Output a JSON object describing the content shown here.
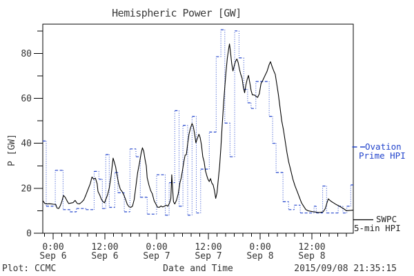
{
  "title": "Hemispheric Power [GW]",
  "axes": {
    "y_label": "P [GW]",
    "x_label": "Date and Time",
    "y_major_ticks": [
      0,
      20,
      40,
      60,
      80
    ],
    "x_ticks": [
      {
        "h": 2.4,
        "time": "0:00",
        "date": "Sep 6"
      },
      {
        "h": 14.4,
        "time": "12:00",
        "date": "Sep 6"
      },
      {
        "h": 26.4,
        "time": "0:00",
        "date": "Sep 7"
      },
      {
        "h": 38.4,
        "time": "12:00",
        "date": "Sep 7"
      },
      {
        "h": 50.4,
        "time": "0:00",
        "date": "Sep 8"
      },
      {
        "h": 62.4,
        "time": "12:00",
        "date": "Sep 8"
      }
    ]
  },
  "footer": {
    "left": "Plot: CCMC",
    "right": "2015/09/08 21:35:15"
  },
  "legend": {
    "ovation": {
      "line1": "Ovation",
      "line2": "Prime HPI",
      "color": "#2244cc"
    },
    "swpc": {
      "line1": "SWPC",
      "line2": "5-min HPI",
      "color": "#000000"
    }
  },
  "chart_data": {
    "type": "line",
    "title": "Hemispheric Power [GW]",
    "xlabel": "Date and Time",
    "ylabel": "P [GW]",
    "x_unit": "hours from plot start (left edge = 21:35 UT 2015-09-05, right edge = 21:35 UT 2015-09-08)",
    "xlim": [
      0,
      72
    ],
    "ylim": [
      0,
      93
    ],
    "grid": false,
    "legend_position": "right-outside",
    "x_minor_tick_hours": 2,
    "y_minor_tick_step": 10,
    "series": [
      {
        "name": "SWPC 5-min HPI",
        "style": "solid",
        "color": "#000000",
        "points": [
          [
            0,
            14.5
          ],
          [
            0.5,
            13.2
          ],
          [
            1,
            13
          ],
          [
            1.5,
            13.1
          ],
          [
            2,
            13
          ],
          [
            2.5,
            12.9
          ],
          [
            3,
            12.8
          ],
          [
            3.3,
            11.2
          ],
          [
            3.7,
            11
          ],
          [
            4,
            12
          ],
          [
            4.4,
            14
          ],
          [
            4.8,
            16.8
          ],
          [
            5.2,
            16
          ],
          [
            5.6,
            14.5
          ],
          [
            6,
            13.2
          ],
          [
            6.5,
            13.4
          ],
          [
            7,
            13.6
          ],
          [
            7.5,
            14.6
          ],
          [
            8,
            13.2
          ],
          [
            8.5,
            13
          ],
          [
            9,
            13.8
          ],
          [
            9.5,
            14.8
          ],
          [
            10,
            17
          ],
          [
            10.5,
            19.5
          ],
          [
            11,
            22
          ],
          [
            11.4,
            25
          ],
          [
            11.8,
            24
          ],
          [
            12.2,
            24.5
          ],
          [
            12.6,
            22
          ],
          [
            12.8,
            18.6
          ],
          [
            13.2,
            17
          ],
          [
            13.6,
            15
          ],
          [
            14,
            14
          ],
          [
            14.3,
            13.5
          ],
          [
            14.7,
            15.5
          ],
          [
            15,
            17
          ],
          [
            15.4,
            20
          ],
          [
            15.8,
            25
          ],
          [
            16.1,
            30
          ],
          [
            16.3,
            33.4
          ],
          [
            16.6,
            31.5
          ],
          [
            16.9,
            29.5
          ],
          [
            17.2,
            26
          ],
          [
            17.6,
            22
          ],
          [
            18,
            19.5
          ],
          [
            18.4,
            18.5
          ],
          [
            18.8,
            17
          ],
          [
            19.2,
            15
          ],
          [
            19.6,
            12.8
          ],
          [
            20,
            11.8
          ],
          [
            20.4,
            11.5
          ],
          [
            20.8,
            12
          ],
          [
            21.2,
            15
          ],
          [
            21.6,
            21
          ],
          [
            22,
            27
          ],
          [
            22.4,
            31
          ],
          [
            22.8,
            35.5
          ],
          [
            23.1,
            38
          ],
          [
            23.4,
            36.5
          ],
          [
            23.7,
            33
          ],
          [
            24,
            30
          ],
          [
            24.2,
            24.7
          ],
          [
            24.6,
            21.5
          ],
          [
            25,
            19
          ],
          [
            25.4,
            17.5
          ],
          [
            25.8,
            14.5
          ],
          [
            26.2,
            13
          ],
          [
            26.6,
            11.6
          ],
          [
            27,
            11.5
          ],
          [
            27.4,
            12.1
          ],
          [
            27.8,
            11.7
          ],
          [
            28.2,
            12
          ],
          [
            28.6,
            12.5
          ],
          [
            29,
            12
          ],
          [
            29.4,
            13.5
          ],
          [
            29.7,
            15.5
          ],
          [
            29.9,
            26
          ],
          [
            30.1,
            20
          ],
          [
            30.3,
            14
          ],
          [
            30.6,
            13
          ],
          [
            31,
            14.7
          ],
          [
            31.4,
            17.5
          ],
          [
            31.8,
            22.5
          ],
          [
            32.1,
            24.6
          ],
          [
            32.4,
            28
          ],
          [
            32.7,
            31.7
          ],
          [
            33,
            34.7
          ],
          [
            33.3,
            35
          ],
          [
            33.6,
            39.8
          ],
          [
            33.9,
            44
          ],
          [
            34.2,
            46.5
          ],
          [
            34.6,
            48.8
          ],
          [
            34.9,
            47.5
          ],
          [
            35.2,
            44.3
          ],
          [
            35.5,
            40.2
          ],
          [
            35.8,
            42
          ],
          [
            36.2,
            44
          ],
          [
            36.5,
            42.5
          ],
          [
            36.8,
            39.2
          ],
          [
            37.1,
            34
          ],
          [
            37.4,
            31.9
          ],
          [
            37.7,
            28
          ],
          [
            38,
            25.8
          ],
          [
            38.3,
            24
          ],
          [
            38.6,
            23
          ],
          [
            38.9,
            24.3
          ],
          [
            39.2,
            22.3
          ],
          [
            39.5,
            21.5
          ],
          [
            39.8,
            19
          ],
          [
            40.1,
            15.5
          ],
          [
            40.4,
            18
          ],
          [
            40.7,
            24
          ],
          [
            41,
            30
          ],
          [
            41.3,
            38
          ],
          [
            41.6,
            48
          ],
          [
            41.9,
            57
          ],
          [
            42.2,
            65
          ],
          [
            42.5,
            72
          ],
          [
            42.8,
            78
          ],
          [
            43.1,
            82
          ],
          [
            43.3,
            84.2
          ],
          [
            43.5,
            81
          ],
          [
            43.8,
            75.5
          ],
          [
            44.1,
            72.2
          ],
          [
            44.4,
            74.5
          ],
          [
            44.7,
            76.5
          ],
          [
            45,
            77.5
          ],
          [
            45.3,
            76
          ],
          [
            45.6,
            73
          ],
          [
            45.9,
            70.7
          ],
          [
            46.2,
            69
          ],
          [
            46.5,
            65
          ],
          [
            46.8,
            62.5
          ],
          [
            47.1,
            66
          ],
          [
            47.4,
            68.5
          ],
          [
            47.7,
            70.2
          ],
          [
            48,
            67
          ],
          [
            48.3,
            63.5
          ],
          [
            48.6,
            61.5
          ],
          [
            49,
            61.5
          ],
          [
            49.4,
            61
          ],
          [
            49.8,
            60.4
          ],
          [
            50.2,
            62
          ],
          [
            50.6,
            66.6
          ],
          [
            51,
            68
          ],
          [
            51.5,
            70
          ],
          [
            52,
            72
          ],
          [
            52.5,
            75
          ],
          [
            52.8,
            76.3
          ],
          [
            53.2,
            74
          ],
          [
            53.6,
            72
          ],
          [
            53.9,
            70.7
          ],
          [
            54.2,
            67
          ],
          [
            54.6,
            62
          ],
          [
            55,
            56
          ],
          [
            55.4,
            50
          ],
          [
            55.8,
            46
          ],
          [
            56.2,
            41
          ],
          [
            56.6,
            36
          ],
          [
            57,
            31.8
          ],
          [
            57.5,
            28
          ],
          [
            58,
            24
          ],
          [
            58.5,
            21
          ],
          [
            59,
            18.5
          ],
          [
            59.5,
            16
          ],
          [
            60,
            13.5
          ],
          [
            60.5,
            12
          ],
          [
            61,
            10.5
          ],
          [
            61.5,
            10
          ],
          [
            62,
            9.8
          ],
          [
            62.5,
            9.6
          ],
          [
            63,
            9.5
          ],
          [
            63.5,
            9.3
          ],
          [
            64,
            9.2
          ],
          [
            64.5,
            9.3
          ],
          [
            65,
            9.5
          ],
          [
            65.5,
            11
          ],
          [
            65.9,
            13.5
          ],
          [
            66.2,
            15.3
          ],
          [
            66.6,
            14.6
          ],
          [
            67,
            14
          ],
          [
            67.5,
            13.4
          ],
          [
            68,
            12.8
          ],
          [
            68.5,
            12.3
          ],
          [
            69,
            11.8
          ],
          [
            69.5,
            11.2
          ],
          [
            70,
            10.6
          ],
          [
            70.4,
            10
          ],
          [
            71,
            10.1
          ],
          [
            71.5,
            10.2
          ],
          [
            72,
            10.3
          ]
        ]
      },
      {
        "name": "Ovation Prime HPI",
        "style": "dashed-steps-dotted-risers",
        "color": "#2244cc",
        "steps": [
          [
            0,
            41
          ],
          [
            0.8,
            12
          ],
          [
            2.9,
            28
          ],
          [
            4.7,
            10.5
          ],
          [
            6.3,
            9.5
          ],
          [
            7.8,
            11
          ],
          [
            10,
            10.5
          ],
          [
            11.9,
            27.5
          ],
          [
            13,
            24
          ],
          [
            13.8,
            11
          ],
          [
            14.6,
            35
          ],
          [
            15.4,
            11.5
          ],
          [
            16.7,
            27
          ],
          [
            17.4,
            18
          ],
          [
            18.9,
            9.5
          ],
          [
            20.2,
            37.5
          ],
          [
            21.6,
            34
          ],
          [
            22.6,
            16
          ],
          [
            24.2,
            8.5
          ],
          [
            26.4,
            26
          ],
          [
            28.4,
            8
          ],
          [
            29.3,
            22.5
          ],
          [
            30.6,
            54.5
          ],
          [
            31.6,
            12
          ],
          [
            32.5,
            48
          ],
          [
            33.6,
            8
          ],
          [
            34.6,
            52
          ],
          [
            35.6,
            9
          ],
          [
            36.6,
            28.5
          ],
          [
            38.6,
            45
          ],
          [
            40.2,
            78.5
          ],
          [
            41.3,
            90.5
          ],
          [
            42.2,
            49
          ],
          [
            43.4,
            34
          ],
          [
            44.5,
            90
          ],
          [
            45.5,
            78
          ],
          [
            46.6,
            64
          ],
          [
            47.5,
            58
          ],
          [
            48.3,
            55.5
          ],
          [
            49.4,
            67.5
          ],
          [
            52.5,
            52
          ],
          [
            53.3,
            40
          ],
          [
            54.1,
            27
          ],
          [
            55.7,
            14
          ],
          [
            57,
            10.5
          ],
          [
            58.3,
            12.5
          ],
          [
            59.7,
            9
          ],
          [
            62.9,
            12
          ],
          [
            63.4,
            9
          ],
          [
            64.9,
            21
          ],
          [
            65.8,
            9
          ],
          [
            68.5,
            12
          ],
          [
            69.6,
            9
          ],
          [
            70.5,
            12
          ],
          [
            71.4,
            21.5
          ]
        ],
        "end_h": 72
      }
    ]
  }
}
